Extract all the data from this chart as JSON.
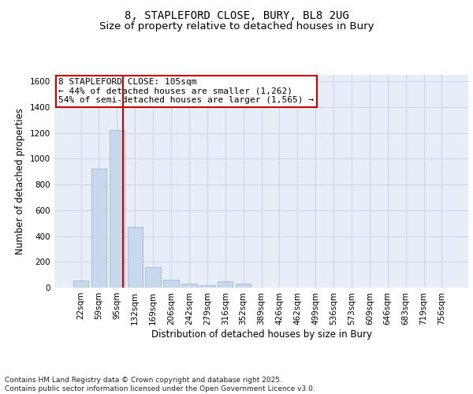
{
  "title_line1": "8, STAPLEFORD CLOSE, BURY, BL8 2UG",
  "title_line2": "Size of property relative to detached houses in Bury",
  "xlabel": "Distribution of detached houses by size in Bury",
  "ylabel": "Number of detached properties",
  "categories": [
    "22sqm",
    "59sqm",
    "95sqm",
    "132sqm",
    "169sqm",
    "206sqm",
    "242sqm",
    "279sqm",
    "316sqm",
    "352sqm",
    "389sqm",
    "426sqm",
    "462sqm",
    "499sqm",
    "536sqm",
    "573sqm",
    "609sqm",
    "646sqm",
    "683sqm",
    "719sqm",
    "756sqm"
  ],
  "values": [
    55,
    920,
    1220,
    470,
    160,
    60,
    30,
    20,
    50,
    30,
    0,
    0,
    0,
    0,
    0,
    0,
    0,
    0,
    0,
    0,
    0
  ],
  "bar_color": "#c8d9ee",
  "bar_edge_color": "#9ab8d8",
  "vline_x_index": 2.35,
  "vline_color": "#cc0000",
  "annotation_text": "8 STAPLEFORD CLOSE: 105sqm\n← 44% of detached houses are smaller (1,262)\n54% of semi-detached houses are larger (1,565) →",
  "annotation_box_color": "#cc0000",
  "ylim": [
    0,
    1650
  ],
  "yticks": [
    0,
    200,
    400,
    600,
    800,
    1000,
    1200,
    1400,
    1600
  ],
  "grid_color": "#c8d4e8",
  "bg_color": "#e8eef8",
  "fig_bg_color": "#ffffff",
  "footnote": "Contains HM Land Registry data © Crown copyright and database right 2025.\nContains public sector information licensed under the Open Government Licence v3.0.",
  "title_fontsize": 10,
  "subtitle_fontsize": 9.5,
  "axis_label_fontsize": 8.5,
  "tick_fontsize": 7.5,
  "annotation_fontsize": 8,
  "footnote_fontsize": 6.5
}
